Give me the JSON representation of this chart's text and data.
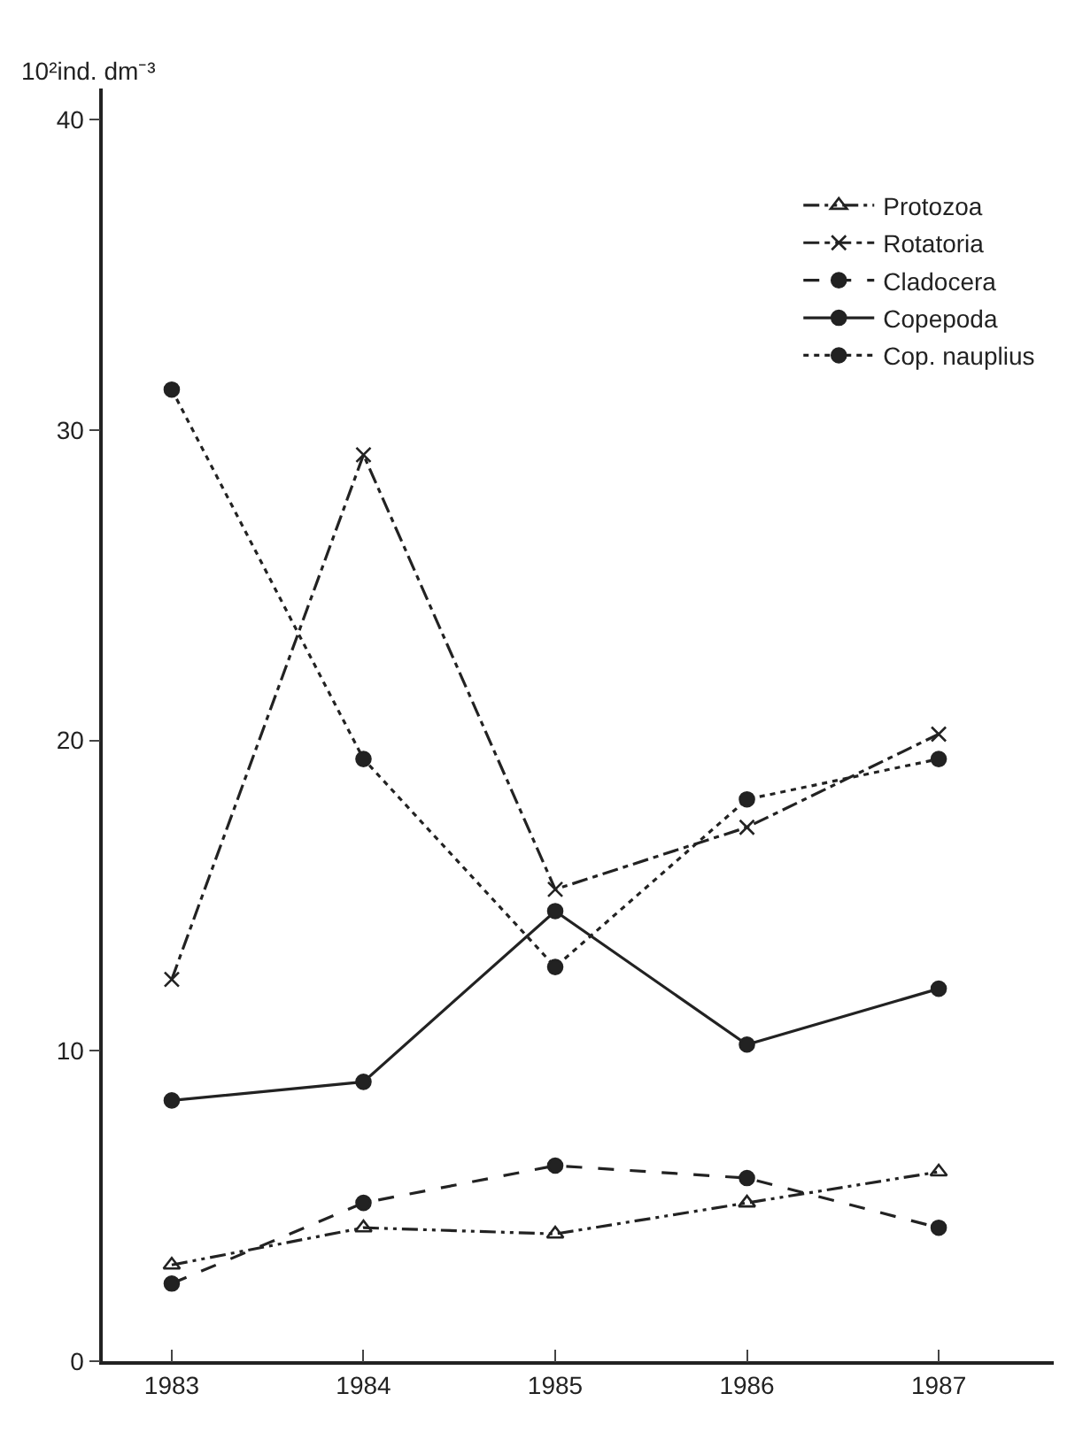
{
  "chart_data": {
    "type": "line",
    "ylabel": "10²ind. dm⁻³",
    "x": [
      1983,
      1984,
      1985,
      1986,
      1987
    ],
    "xlim": [
      1982.64,
      1987.6
    ],
    "xticks": [
      1983,
      1984,
      1985,
      1986,
      1987
    ],
    "ylim": [
      0,
      41
    ],
    "yticks": [
      0,
      10,
      20,
      30,
      40
    ],
    "legend": "top right",
    "series": [
      {
        "name": "Protozoa",
        "color": "#222222",
        "marker": "triangle",
        "line_style": "dashdotdot",
        "values": [
          3.1,
          4.3,
          4.1,
          5.1,
          6.1
        ]
      },
      {
        "name": "Rotatoria",
        "color": "#222222",
        "marker": "cross",
        "line_style": "dashdot",
        "values": [
          12.3,
          29.2,
          15.2,
          17.2,
          20.2
        ]
      },
      {
        "name": "Cladocera",
        "color": "#222222",
        "marker": "circle",
        "line_style": "dashed",
        "values": [
          2.5,
          5.1,
          6.3,
          5.9,
          4.3
        ]
      },
      {
        "name": "Copepoda",
        "color": "#222222",
        "marker": "circle",
        "line_style": "solid",
        "values": [
          8.4,
          9.0,
          14.5,
          10.2,
          12.0
        ]
      },
      {
        "name": "Cop. nauplius",
        "color": "#222222",
        "marker": "circle",
        "line_style": "dotted",
        "values": [
          31.3,
          19.4,
          12.7,
          18.1,
          19.4
        ]
      }
    ]
  }
}
